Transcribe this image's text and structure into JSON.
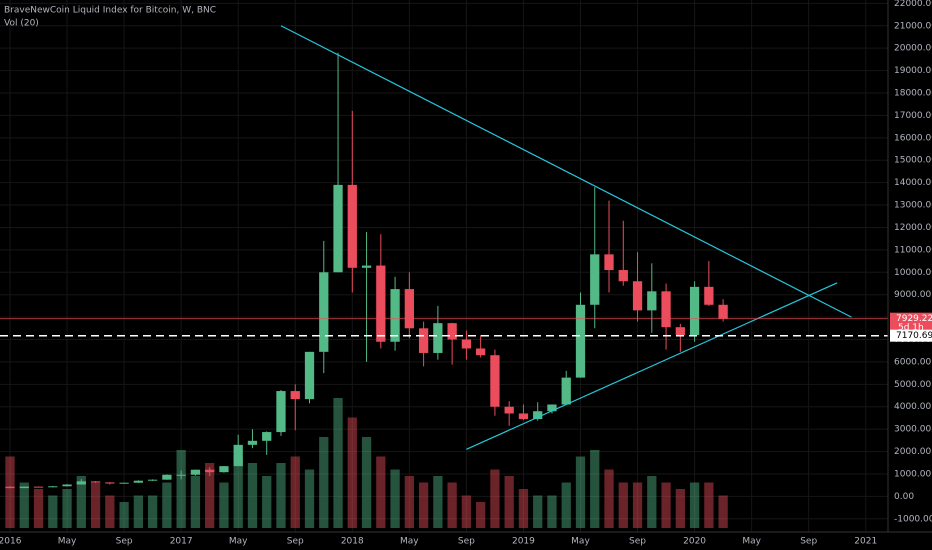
{
  "chart_data": {
    "type": "candlestick",
    "title": "BraveNewCoin Liquid Index for Bitcoin, W, BNC",
    "subtitle": "Vol (20)",
    "x": [
      "2016-01",
      "2016-02",
      "2016-03",
      "2016-04",
      "2016-05",
      "2016-06",
      "2016-07",
      "2016-08",
      "2016-09",
      "2016-10",
      "2016-11",
      "2016-12",
      "2017-01",
      "2017-02",
      "2017-03",
      "2017-04",
      "2017-05",
      "2017-06",
      "2017-07",
      "2017-08",
      "2017-09",
      "2017-10",
      "2017-11",
      "2017-12",
      "2018-01",
      "2018-02",
      "2018-03",
      "2018-04",
      "2018-05",
      "2018-06",
      "2018-07",
      "2018-08",
      "2018-09",
      "2018-10",
      "2018-11",
      "2018-12",
      "2019-01",
      "2019-02",
      "2019-03",
      "2019-04",
      "2019-05",
      "2019-06",
      "2019-07",
      "2019-08",
      "2019-09",
      "2019-10",
      "2019-11",
      "2019-12",
      "2020-01",
      "2020-02",
      "2020-03"
    ],
    "open": [
      430,
      370,
      435,
      415,
      450,
      530,
      670,
      625,
      575,
      610,
      700,
      745,
      965,
      965,
      1190,
      1080,
      1350,
      2300,
      2480,
      2870,
      4700,
      4340,
      6450,
      10000,
      13900,
      10200,
      10300,
      6900,
      9250,
      7500,
      6400,
      7730,
      7000,
      6600,
      6300,
      4000,
      3700,
      3450,
      3800,
      4100,
      5300,
      8550,
      10800,
      10100,
      9600,
      8300,
      9150,
      7550,
      7200,
      9350,
      8550
    ],
    "high": [
      460,
      440,
      440,
      465,
      550,
      770,
      680,
      630,
      620,
      720,
      760,
      980,
      1150,
      1200,
      1300,
      1350,
      2750,
      3000,
      2900,
      4750,
      5000,
      6450,
      11400,
      19800,
      17200,
      11800,
      11700,
      9800,
      10000,
      7800,
      8500,
      7750,
      7400,
      7200,
      6550,
      4250,
      4100,
      4200,
      4100,
      5600,
      9100,
      13800,
      13200,
      12300,
      10900,
      10400,
      9500,
      7700,
      9600,
      10500,
      8800
    ],
    "low": [
      360,
      370,
      405,
      410,
      440,
      530,
      600,
      530,
      575,
      600,
      690,
      745,
      760,
      920,
      900,
      1060,
      1350,
      2150,
      1850,
      2700,
      2950,
      4150,
      5500,
      10000,
      9100,
      6000,
      6600,
      6500,
      7050,
      5800,
      6100,
      5880,
      6100,
      6200,
      3600,
      3150,
      3400,
      3380,
      3700,
      4100,
      5300,
      7500,
      9100,
      9400,
      7800,
      7300,
      6550,
      6450,
      6900,
      8500,
      7800
    ],
    "close": [
      370,
      435,
      415,
      450,
      530,
      670,
      625,
      575,
      610,
      700,
      745,
      965,
      965,
      1190,
      1080,
      1350,
      2300,
      2480,
      2870,
      4700,
      4340,
      6450,
      10000,
      13900,
      10200,
      10300,
      6900,
      9250,
      7500,
      6400,
      7730,
      7000,
      6600,
      6300,
      4000,
      3700,
      3450,
      3800,
      4100,
      5300,
      8550,
      10800,
      10100,
      9600,
      8300,
      9150,
      7550,
      7200,
      9350,
      8550,
      7929.22
    ],
    "volume": [
      55,
      35,
      30,
      25,
      30,
      40,
      35,
      25,
      20,
      25,
      25,
      35,
      60,
      40,
      50,
      35,
      55,
      50,
      40,
      50,
      55,
      45,
      70,
      100,
      85,
      70,
      55,
      45,
      40,
      35,
      40,
      35,
      25,
      20,
      45,
      40,
      30,
      25,
      25,
      35,
      55,
      60,
      45,
      35,
      35,
      40,
      35,
      30,
      35,
      35,
      25
    ],
    "vlim": [
      0,
      100
    ],
    "up_color": "#53b987",
    "down_color": "#eb4d5c",
    "xlim": [
      "2016-01",
      "2021-02"
    ],
    "xticks": [
      {
        "value": "2016-01",
        "label": "2016"
      },
      {
        "value": "2016-05",
        "label": "May"
      },
      {
        "value": "2016-09",
        "label": "Sep"
      },
      {
        "value": "2017-01",
        "label": "2017"
      },
      {
        "value": "2017-05",
        "label": "May"
      },
      {
        "value": "2017-09",
        "label": "Sep"
      },
      {
        "value": "2018-01",
        "label": "2018"
      },
      {
        "value": "2018-05",
        "label": "May"
      },
      {
        "value": "2018-09",
        "label": "Sep"
      },
      {
        "value": "2019-01",
        "label": "2019"
      },
      {
        "value": "2019-05",
        "label": "May"
      },
      {
        "value": "2019-09",
        "label": "Sep"
      },
      {
        "value": "2020-01",
        "label": "2020"
      },
      {
        "value": "2020-05",
        "label": "May"
      },
      {
        "value": "2020-09",
        "label": "Sep"
      },
      {
        "value": "2021-01",
        "label": "2021"
      }
    ],
    "ylim": [
      -1500,
      22150
    ],
    "yticks": [
      {
        "value": -1000,
        "label": "-1000.00"
      },
      {
        "value": 0,
        "label": "0.00"
      },
      {
        "value": 1000,
        "label": "1000.00"
      },
      {
        "value": 2000,
        "label": "2000.00"
      },
      {
        "value": 3000,
        "label": "3000.00"
      },
      {
        "value": 4000,
        "label": "4000.00"
      },
      {
        "value": 5000,
        "label": "5000.00"
      },
      {
        "value": 6000,
        "label": "6000.00"
      },
      {
        "value": 7000,
        "label": "7000.00"
      },
      {
        "value": 8000,
        "label": "8000.00"
      },
      {
        "value": 9000,
        "label": "9000.00"
      },
      {
        "value": 10000,
        "label": "10000.00"
      },
      {
        "value": 11000,
        "label": "11000.00"
      },
      {
        "value": 12000,
        "label": "12000.00"
      },
      {
        "value": 13000,
        "label": "13000.00"
      },
      {
        "value": 14000,
        "label": "14000.00"
      },
      {
        "value": 15000,
        "label": "15000.00"
      },
      {
        "value": 16000,
        "label": "16000.00"
      },
      {
        "value": 17000,
        "label": "17000.00"
      },
      {
        "value": 18000,
        "label": "18000.00"
      },
      {
        "value": 19000,
        "label": "19000.00"
      },
      {
        "value": 20000,
        "label": "20000.00"
      },
      {
        "value": 21000,
        "label": "21000.00"
      },
      {
        "value": 22000,
        "label": "22000.00"
      }
    ],
    "grid": true,
    "trendlines": [
      {
        "x": [
          "2017-08",
          "2020-12"
        ],
        "y": [
          21000,
          8000
        ],
        "color": "#26c6da"
      },
      {
        "x": [
          "2018-09",
          "2020-11"
        ],
        "y": [
          2100,
          9530
        ],
        "color": "#26c6da"
      }
    ],
    "last_price": 7929.22,
    "countdown": "5d 1h",
    "horizontal_line": 7170.69
  }
}
